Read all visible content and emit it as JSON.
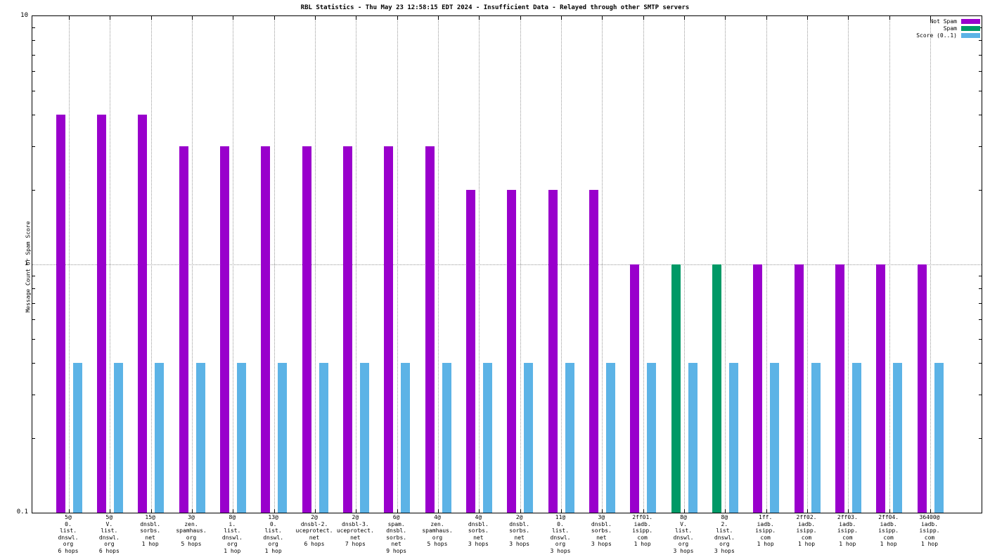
{
  "chart_data": {
    "type": "bar",
    "title": "RBL Statistics - Thu May 23 12:58:15 EDT 2024 - Insufficient Data - Relayed through other SMTP servers",
    "ylabel": "Message Count or Spam Score",
    "y_scale": "log",
    "ylim": [
      0.1,
      10
    ],
    "y_ticks": [
      {
        "v": 10,
        "label": "10"
      },
      {
        "v": 1,
        "label": "1"
      },
      {
        "v": 0.1,
        "label": "0.1"
      }
    ],
    "grid": "dotted vertical line at each category; dotted horizontal line at y=1",
    "legend_position": "top-right",
    "categories": [
      [
        "5@",
        "0.",
        "list.",
        "dnswl.",
        "org",
        "6 hops"
      ],
      [
        "5@",
        "V.",
        "list.",
        "dnswl.",
        "org",
        "6 hops"
      ],
      [
        "15@",
        "dnsbl.",
        "sorbs.",
        "net",
        "1 hop"
      ],
      [
        "3@",
        "zen.",
        "spamhaus.",
        "org",
        "5 hops"
      ],
      [
        "8@",
        "i.",
        "list.",
        "dnswl.",
        "org",
        "1 hop"
      ],
      [
        "13@",
        "0.",
        "list.",
        "dnswl.",
        "org",
        "1 hop"
      ],
      [
        "2@",
        "dnsbl-2.",
        "uceprotect.",
        "net",
        "6 hops"
      ],
      [
        "2@",
        "dnsbl-3.",
        "uceprotect.",
        "net",
        "7 hops"
      ],
      [
        "6@",
        "spam.",
        "dnsbl.",
        "sorbs.",
        "net",
        "9 hops"
      ],
      [
        "4@",
        "zen.",
        "spamhaus.",
        "org",
        "5 hops"
      ],
      [
        "4@",
        "dnsbl.",
        "sorbs.",
        "net",
        "3 hops"
      ],
      [
        "2@",
        "dnsbl.",
        "sorbs.",
        "net",
        "3 hops"
      ],
      [
        "11@",
        "0.",
        "list.",
        "dnswl.",
        "org",
        "3 hops"
      ],
      [
        "3@",
        "dnsbl.",
        "sorbs.",
        "net",
        "3 hops"
      ],
      [
        "2ff01.",
        "iadb.",
        "isipp.",
        "com",
        "1 hop"
      ],
      [
        "8@",
        "V.",
        "list.",
        "dnswl.",
        "org",
        "3 hops"
      ],
      [
        "8@",
        "2.",
        "list.",
        "dnswl.",
        "org",
        "3 hops"
      ],
      [
        "1ff.",
        "iadb.",
        "isipp.",
        "com",
        "1 hop"
      ],
      [
        "2ff02.",
        "iadb.",
        "isipp.",
        "com",
        "1 hop"
      ],
      [
        "2ff03.",
        "iadb.",
        "isipp.",
        "com",
        "1 hop"
      ],
      [
        "2ff04.",
        "iadb.",
        "isipp.",
        "com",
        "1 hop"
      ],
      [
        "36400@",
        "iadb.",
        "isipp.",
        "com",
        "1 hop"
      ]
    ],
    "series": [
      {
        "name": "Not Spam",
        "color": "#9900cc",
        "values": [
          4,
          4,
          4,
          3,
          3,
          3,
          3,
          3,
          3,
          3,
          2,
          2,
          2,
          2,
          1,
          null,
          null,
          1,
          1,
          1,
          1,
          1
        ]
      },
      {
        "name": "Spam",
        "color": "#009966",
        "values": [
          null,
          null,
          null,
          null,
          null,
          null,
          null,
          null,
          null,
          null,
          null,
          null,
          null,
          null,
          null,
          1,
          1,
          null,
          null,
          null,
          null,
          null
        ]
      },
      {
        "name": "Score (0..1)",
        "color": "#5cb3e6",
        "values": [
          0.4,
          0.4,
          0.4,
          0.4,
          0.4,
          0.4,
          0.4,
          0.4,
          0.4,
          0.4,
          0.4,
          0.4,
          0.4,
          0.4,
          0.4,
          0.4,
          0.4,
          0.4,
          0.4,
          0.4,
          0.4,
          0.4
        ]
      }
    ]
  }
}
